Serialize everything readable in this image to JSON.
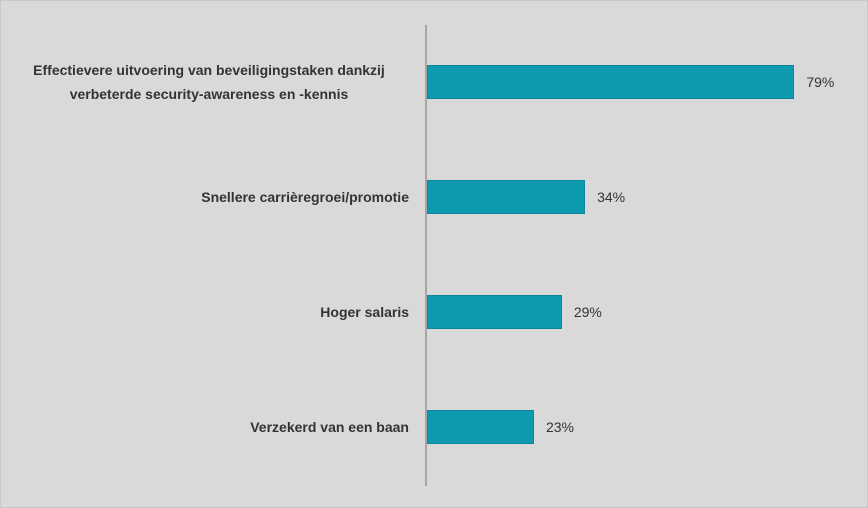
{
  "chart_data": {
    "type": "bar",
    "orientation": "horizontal",
    "categories": [
      "Effectievere uitvoering van beveiligingstaken dankzij verbeterde security-awareness en -kennis",
      "Snellere carrièregroei/promotie",
      "Hoger salaris",
      "Verzekerd van een baan"
    ],
    "values": [
      79,
      34,
      29,
      23
    ],
    "value_labels": [
      "79%",
      "34%",
      "29%",
      "23%"
    ],
    "color": "#0e9bb0"
  }
}
